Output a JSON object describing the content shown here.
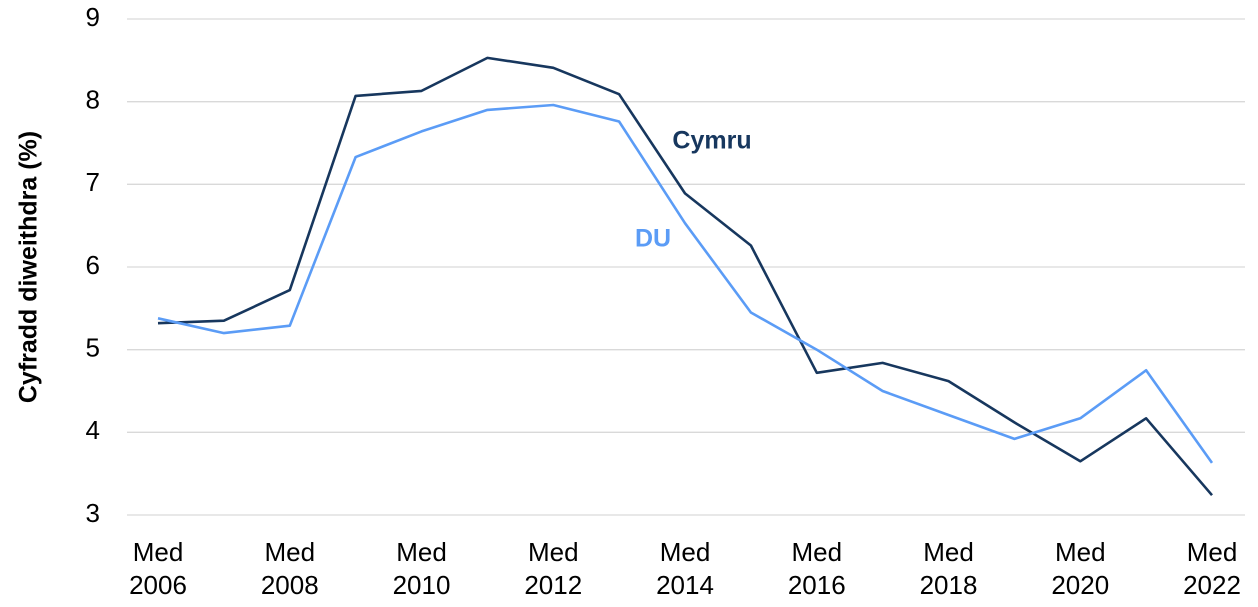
{
  "chart_data": {
    "type": "line",
    "y_label": "Cyfradd diweithdra (%)",
    "categories": [
      "Med 2006",
      null,
      "Med 2008",
      null,
      "Med 2010",
      null,
      "Med 2012",
      null,
      "Med 2014",
      null,
      "Med 2016",
      null,
      "Med 2018",
      null,
      "Med 2020",
      null,
      "Med 2022"
    ],
    "series": [
      {
        "name": "Cymru",
        "color": "#17375e",
        "values": [
          5.32,
          5.35,
          5.72,
          8.07,
          8.13,
          8.53,
          8.41,
          8.09,
          6.89,
          6.26,
          4.72,
          4.84,
          4.62,
          4.12,
          3.65,
          4.17,
          3.24
        ]
      },
      {
        "name": "DU",
        "color": "#5b9cf6",
        "values": [
          5.38,
          5.2,
          5.29,
          7.33,
          7.64,
          7.9,
          7.96,
          7.76,
          6.53,
          5.45,
          5.0,
          4.5,
          4.21,
          3.92,
          4.17,
          4.75,
          3.63
        ]
      }
    ],
    "ylim": [
      3,
      9
    ],
    "yticks": [
      3,
      4,
      5,
      6,
      7,
      8,
      9
    ],
    "grid": true
  }
}
